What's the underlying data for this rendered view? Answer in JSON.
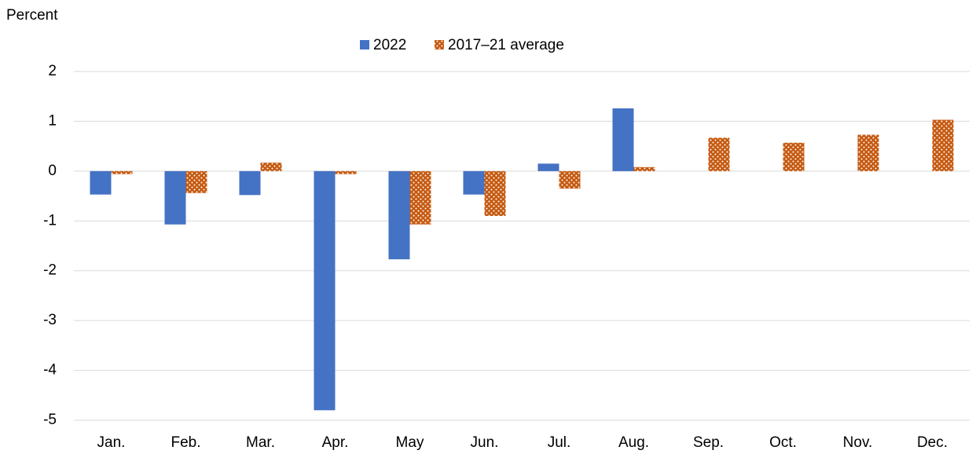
{
  "chart_data": {
    "type": "bar",
    "y_label": "Percent",
    "categories": [
      "Jan.",
      "Feb.",
      "Mar.",
      "Apr.",
      "May",
      "Jun.",
      "Jul.",
      "Aug.",
      "Sep.",
      "Oct.",
      "Nov.",
      "Dec."
    ],
    "series": [
      {
        "name": "2022",
        "color": "#4472c4",
        "pattern": "solid",
        "values": [
          -0.47,
          -1.07,
          -0.48,
          -4.8,
          -1.77,
          -0.47,
          0.15,
          1.26,
          null,
          null,
          null,
          null
        ]
      },
      {
        "name": "2017–21 average",
        "color": "#c55a11",
        "pattern": "dots",
        "values": [
          -0.06,
          -0.44,
          0.17,
          -0.06,
          -1.07,
          -0.9,
          -0.35,
          0.08,
          0.67,
          0.57,
          0.73,
          1.03
        ]
      }
    ],
    "ylim": [
      -5,
      2
    ],
    "yticks": [
      -5,
      -4,
      -3,
      -2,
      -1,
      0,
      1,
      2
    ],
    "grid": true,
    "legend": "top"
  }
}
